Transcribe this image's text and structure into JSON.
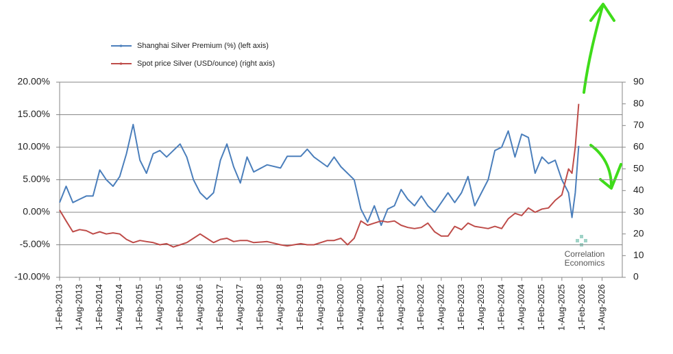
{
  "chart_data": {
    "type": "line",
    "legend": "top-left",
    "grid": true,
    "watermark": [
      "Correlation",
      "Economics"
    ],
    "x": [
      "2013-02-01",
      "2013-04-01",
      "2013-06-01",
      "2013-08-01",
      "2013-10-01",
      "2013-12-01",
      "2014-02-01",
      "2014-04-01",
      "2014-06-01",
      "2014-08-01",
      "2014-10-01",
      "2014-12-01",
      "2015-02-01",
      "2015-04-01",
      "2015-06-01",
      "2015-08-01",
      "2015-10-01",
      "2015-12-01",
      "2016-02-01",
      "2016-04-01",
      "2016-06-01",
      "2016-08-01",
      "2016-10-01",
      "2016-12-01",
      "2017-02-01",
      "2017-04-01",
      "2017-06-01",
      "2017-08-01",
      "2017-10-01",
      "2017-12-01",
      "2018-04-01",
      "2018-08-01",
      "2018-10-01",
      "2019-02-01",
      "2019-04-01",
      "2019-06-01",
      "2019-10-01",
      "2019-12-01",
      "2020-02-01",
      "2020-04-01",
      "2020-06-01",
      "2020-08-01",
      "2020-10-01",
      "2020-12-01",
      "2021-02-01",
      "2021-04-01",
      "2021-06-01",
      "2021-08-01",
      "2021-10-01",
      "2021-12-01",
      "2022-02-01",
      "2022-04-01",
      "2022-06-01",
      "2022-08-01",
      "2022-10-01",
      "2022-12-01",
      "2023-02-01",
      "2023-04-01",
      "2023-06-01",
      "2023-08-01",
      "2023-10-01",
      "2023-12-01",
      "2024-02-01",
      "2024-04-01",
      "2024-06-01",
      "2024-08-01",
      "2024-10-01",
      "2024-12-01",
      "2025-02-01",
      "2025-04-01",
      "2025-06-01",
      "2025-08-01",
      "2025-10-01",
      "2025-11-01",
      "2025-12-01",
      "2026-01-01"
    ],
    "series": [
      {
        "name": "Shanghai Silver Premium (%) (left axis)",
        "color": "#4a7ebb",
        "values": [
          1.5,
          4.0,
          1.5,
          2.0,
          2.5,
          2.5,
          6.5,
          5.0,
          4.0,
          5.5,
          9.0,
          13.5,
          8.0,
          6.0,
          9.0,
          9.5,
          8.5,
          9.5,
          10.5,
          8.5,
          5.0,
          3.0,
          2.0,
          3.0,
          8.0,
          10.5,
          7.0,
          4.5,
          8.5,
          6.2,
          7.3,
          6.8,
          8.6,
          8.6,
          9.7,
          8.5,
          7.0,
          8.5,
          7.0,
          6.0,
          5.0,
          0.5,
          -1.5,
          1.0,
          -2.0,
          0.5,
          1.0,
          3.5,
          2.0,
          1.0,
          2.5,
          1.0,
          0.0,
          1.5,
          3.0,
          1.5,
          3.0,
          5.5,
          1.0,
          3.0,
          5.0,
          9.5,
          10.0,
          12.5,
          8.5,
          12.0,
          11.5,
          6.0,
          8.5,
          7.5,
          8.0,
          5.0,
          3.0,
          -0.8,
          3.0,
          10.2
        ]
      },
      {
        "name": "Spot price Silver (USD/ounce) (right axis)",
        "color": "#be4b48",
        "axis": "y2",
        "values": [
          31,
          26,
          21,
          22,
          21.5,
          20,
          21,
          20,
          20.5,
          20,
          17.5,
          16,
          17,
          16.5,
          16,
          15,
          15.5,
          14,
          15,
          16,
          18,
          20,
          18,
          16,
          17.5,
          18,
          16.5,
          17,
          17,
          16,
          16.5,
          15,
          14.5,
          15.5,
          15,
          15,
          17,
          17,
          18,
          15,
          18,
          26,
          24,
          25,
          26,
          25.5,
          26,
          24,
          23,
          22.5,
          23,
          25,
          21,
          19,
          19,
          23.5,
          22,
          25,
          23.5,
          23,
          22.5,
          23.5,
          22.5,
          27,
          29.5,
          28.5,
          32,
          30,
          31.5,
          32,
          35.5,
          38,
          50,
          48,
          60,
          80
        ]
      }
    ],
    "xlim": [
      "2013-02-01",
      "2027-02-01"
    ],
    "xticks": [
      {
        "value": "2013-02-01",
        "label": "1-Feb-2013"
      },
      {
        "value": "2013-08-01",
        "label": "1-Aug-2013"
      },
      {
        "value": "2014-02-01",
        "label": "1-Feb-2014"
      },
      {
        "value": "2014-08-01",
        "label": "1-Aug-2014"
      },
      {
        "value": "2015-02-01",
        "label": "1-Feb-2015"
      },
      {
        "value": "2015-08-01",
        "label": "1-Aug-2015"
      },
      {
        "value": "2016-02-01",
        "label": "1-Feb-2016"
      },
      {
        "value": "2016-08-01",
        "label": "1-Aug-2016"
      },
      {
        "value": "2017-02-01",
        "label": "1-Feb-2017"
      },
      {
        "value": "2017-08-01",
        "label": "1-Aug-2017"
      },
      {
        "value": "2018-02-01",
        "label": "1-Feb-2018"
      },
      {
        "value": "2018-08-01",
        "label": "1-Aug-2018"
      },
      {
        "value": "2019-02-01",
        "label": "1-Feb-2019"
      },
      {
        "value": "2019-08-01",
        "label": "1-Aug-2019"
      },
      {
        "value": "2020-02-01",
        "label": "1-Feb-2020"
      },
      {
        "value": "2020-08-01",
        "label": "1-Aug-2020"
      },
      {
        "value": "2021-02-01",
        "label": "1-Feb-2021"
      },
      {
        "value": "2021-08-01",
        "label": "1-Aug-2021"
      },
      {
        "value": "2022-02-01",
        "label": "1-Feb-2022"
      },
      {
        "value": "2022-08-01",
        "label": "1-Aug-2022"
      },
      {
        "value": "2023-02-01",
        "label": "1-Feb-2023"
      },
      {
        "value": "2023-08-01",
        "label": "1-Aug-2023"
      },
      {
        "value": "2024-02-01",
        "label": "1-Feb-2024"
      },
      {
        "value": "2024-08-01",
        "label": "1-Aug-2024"
      },
      {
        "value": "2025-02-01",
        "label": "1-Feb-2025"
      },
      {
        "value": "2025-08-01",
        "label": "1-Aug-2025"
      },
      {
        "value": "2026-02-01",
        "label": "1-Feb-2026"
      },
      {
        "value": "2026-08-01",
        "label": "1-Aug-2026"
      }
    ],
    "ylim": [
      -10,
      20
    ],
    "yticks": [
      {
        "value": -10,
        "label": "-10.00%"
      },
      {
        "value": -5,
        "label": "-5.00%"
      },
      {
        "value": 0,
        "label": "0.00%"
      },
      {
        "value": 5,
        "label": "5.00%"
      },
      {
        "value": 10,
        "label": "10.00%"
      },
      {
        "value": 15,
        "label": "15.00%"
      },
      {
        "value": 20,
        "label": "20.00%"
      }
    ],
    "y2lim": [
      0,
      90
    ],
    "y2ticks": [
      0,
      10,
      20,
      30,
      40,
      50,
      60,
      70,
      80,
      90
    ]
  }
}
